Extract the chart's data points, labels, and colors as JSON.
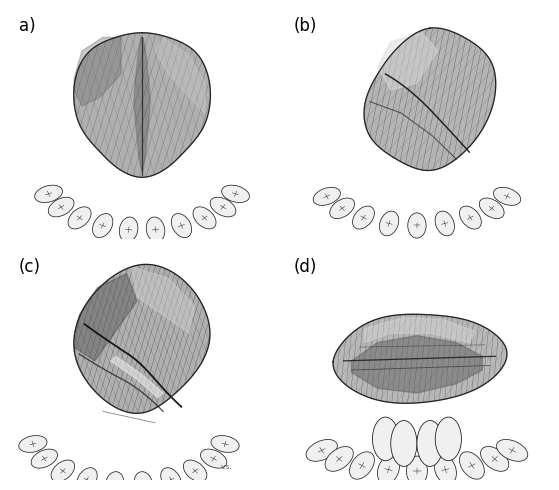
{
  "background_color": "#ffffff",
  "label_fontsize": 12,
  "label_color": "#000000",
  "fig_width": 5.59,
  "fig_height": 4.9,
  "dpi": 100,
  "label_a": "a)",
  "label_b": "(b)",
  "label_c": "(c)",
  "label_d": "(d)",
  "border_color": "#000000",
  "tooth_color": "#f0f0f0",
  "tooth_outline": "#222222",
  "tongue_light": "#c8c8c8",
  "tongue_mid": "#909090",
  "tongue_dark": "#484848",
  "tongue_shadow": "#303030",
  "line_color": "#222222",
  "shading_color": "#383838"
}
